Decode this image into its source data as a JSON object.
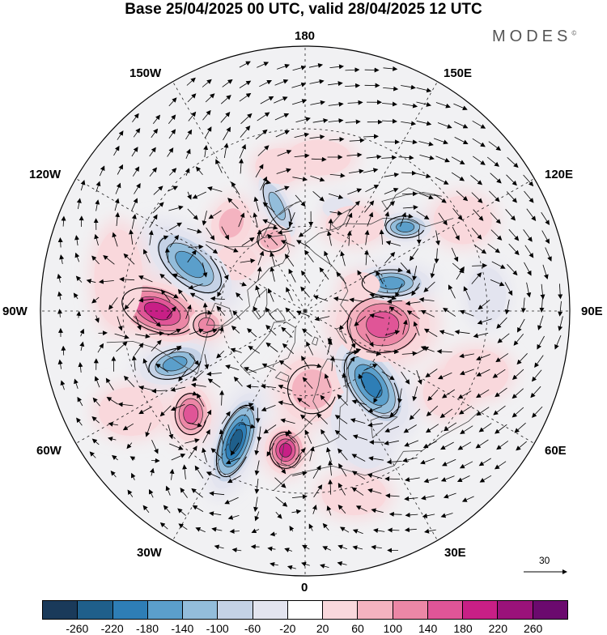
{
  "title": "Base 25/04/2025 00 UTC, valid 28/04/2025 12 UTC",
  "brand": {
    "name": "MODES",
    "mark": "©"
  },
  "map": {
    "projection": "north-polar-stereographic",
    "longitude_labels": {
      "lon_180": "180",
      "lon_150w": "150W",
      "lon_150e": "150E",
      "lon_120w": "120W",
      "lon_120e": "120E",
      "lon_90w": "90W",
      "lon_90e": "90E",
      "lon_60w": "60W",
      "lon_60e": "60E",
      "lon_30w": "30W",
      "lon_30e": "30E",
      "lon_0": "0"
    },
    "reference_vector": {
      "label": "30"
    }
  },
  "colorbar": {
    "colors": [
      "#1a3a5a",
      "#1f5f8b",
      "#2e7eb6",
      "#5b9fcb",
      "#93bddb",
      "#c5d2e6",
      "#e3e4ef",
      "#ffffff",
      "#f9d8dc",
      "#f4b3c0",
      "#ec87a6",
      "#e05597",
      "#c81f86",
      "#9a127a",
      "#6b0a6e"
    ],
    "ticks": [
      "-260",
      "-220",
      "-180",
      "-140",
      "-100",
      "-60",
      "-20",
      "20",
      "60",
      "100",
      "140",
      "180",
      "220",
      "260"
    ]
  },
  "anomalies": [
    {
      "lon": -165,
      "lat": 52,
      "value": -120,
      "rx": 16,
      "ry": 42,
      "rot": -25
    },
    {
      "lon": -170,
      "lat": 40,
      "value": 70,
      "rx": 30,
      "ry": 22,
      "rot": 0
    },
    {
      "lon": 175,
      "lat": 38,
      "value": 60,
      "rx": 40,
      "ry": 22,
      "rot": 0
    },
    {
      "lon": 162,
      "lat": 52,
      "value": -40,
      "rx": 20,
      "ry": 14,
      "rot": 0
    },
    {
      "lon": -140,
      "lat": 50,
      "value": 80,
      "rx": 24,
      "ry": 30,
      "rot": 20
    },
    {
      "lon": -125,
      "lat": 60,
      "value": 70,
      "rx": 26,
      "ry": 22,
      "rot": 0
    },
    {
      "lon": -155,
      "lat": 62,
      "value": 100,
      "rx": 24,
      "ry": 20,
      "rot": 0
    },
    {
      "lon": -112,
      "lat": 47,
      "value": -170,
      "rx": 32,
      "ry": 62,
      "rot": -50
    },
    {
      "lon": -90,
      "lat": 40,
      "value": 200,
      "rx": 62,
      "ry": 34,
      "rot": 20
    },
    {
      "lon": -82,
      "lat": 55,
      "value": 130,
      "rx": 22,
      "ry": 20,
      "rot": 0
    },
    {
      "lon": -68,
      "lat": 42,
      "value": -160,
      "rx": 44,
      "ry": 24,
      "rot": -15
    },
    {
      "lon": -48,
      "lat": 38,
      "value": 180,
      "rx": 26,
      "ry": 34,
      "rot": 0
    },
    {
      "lon": -28,
      "lat": 40,
      "value": -260,
      "rx": 26,
      "ry": 62,
      "rot": 20
    },
    {
      "lon": -8,
      "lat": 42,
      "value": 220,
      "rx": 26,
      "ry": 30,
      "rot": 0
    },
    {
      "lon": 5,
      "lat": 62,
      "value": 100,
      "rx": 40,
      "ry": 40,
      "rot": 0
    },
    {
      "lon": 25,
      "lat": 45,
      "value": -60,
      "rx": 34,
      "ry": 50,
      "rot": -20
    },
    {
      "lon": 42,
      "lat": 55,
      "value": -230,
      "rx": 34,
      "ry": 62,
      "rot": -35
    },
    {
      "lon": 80,
      "lat": 62,
      "value": 190,
      "rx": 58,
      "ry": 46,
      "rot": 0
    },
    {
      "lon": 108,
      "lat": 58,
      "value": -170,
      "rx": 48,
      "ry": 22,
      "rot": 0
    },
    {
      "lon": 130,
      "lat": 45,
      "value": -160,
      "rx": 32,
      "ry": 18,
      "rot": 0
    },
    {
      "lon": 115,
      "lat": 68,
      "value": 70,
      "rx": 24,
      "ry": 16,
      "rot": 0
    },
    {
      "lon": 150,
      "lat": 55,
      "value": 60,
      "rx": 36,
      "ry": 24,
      "rot": 0
    },
    {
      "lon": 95,
      "lat": 30,
      "value": -60,
      "rx": 24,
      "ry": 34,
      "rot": 0
    },
    {
      "lon": 70,
      "lat": 30,
      "value": 40,
      "rx": 40,
      "ry": 30,
      "rot": 0
    },
    {
      "lon": 60,
      "lat": 35,
      "value": 60,
      "rx": 30,
      "ry": 30,
      "rot": 0
    },
    {
      "lon": -100,
      "lat": 28,
      "value": 50,
      "rx": 30,
      "ry": 60,
      "rot": 0
    },
    {
      "lon": -60,
      "lat": 25,
      "value": 40,
      "rx": 40,
      "ry": 30,
      "rot": 0
    },
    {
      "lon": 15,
      "lat": 28,
      "value": 40,
      "rx": 40,
      "ry": 26,
      "rot": 0
    },
    {
      "lon": 120,
      "lat": 30,
      "value": 50,
      "rx": 36,
      "ry": 30,
      "rot": 0
    }
  ],
  "cyclones": [
    {
      "lon": -165,
      "lat": 52,
      "dir": 1
    },
    {
      "lon": -112,
      "lat": 47,
      "dir": 1
    },
    {
      "lon": -90,
      "lat": 40,
      "dir": -1
    },
    {
      "lon": -68,
      "lat": 42,
      "dir": 1
    },
    {
      "lon": -48,
      "lat": 38,
      "dir": -1
    },
    {
      "lon": -28,
      "lat": 40,
      "dir": 1
    },
    {
      "lon": -8,
      "lat": 42,
      "dir": -1
    },
    {
      "lon": 42,
      "lat": 55,
      "dir": 1
    },
    {
      "lon": 80,
      "lat": 62,
      "dir": -1
    },
    {
      "lon": 108,
      "lat": 58,
      "dir": 1
    },
    {
      "lon": 130,
      "lat": 45,
      "dir": 1
    },
    {
      "lon": -140,
      "lat": 50,
      "dir": -1
    },
    {
      "lon": 95,
      "lat": 30,
      "dir": 1
    }
  ]
}
